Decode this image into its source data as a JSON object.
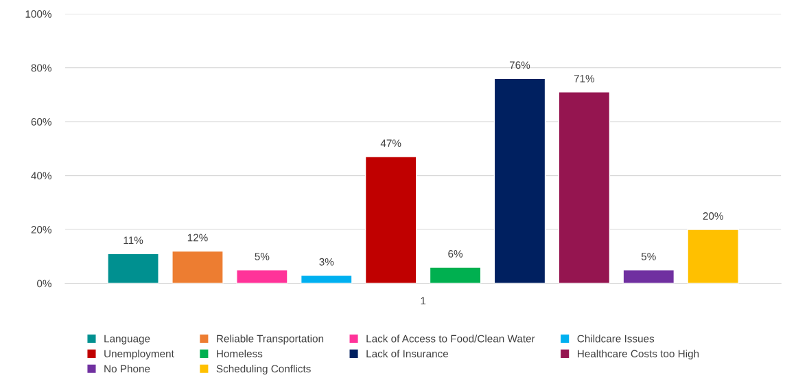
{
  "chart_data": {
    "type": "bar",
    "categories": [
      "1"
    ],
    "series": [
      {
        "name": "Language",
        "color": "#009090",
        "values": [
          11
        ],
        "value_labels": [
          "11%"
        ]
      },
      {
        "name": "Reliable Transportation",
        "color": "#ed7d31",
        "values": [
          12
        ],
        "value_labels": [
          "12%"
        ]
      },
      {
        "name": "Lack of Access to Food/Clean Water",
        "color": "#ff3399",
        "values": [
          5
        ],
        "value_labels": [
          "5%"
        ]
      },
      {
        "name": "Childcare Issues",
        "color": "#00b0f0",
        "values": [
          3
        ],
        "value_labels": [
          "3%"
        ]
      },
      {
        "name": "Unemployment",
        "color": "#c00000",
        "values": [
          47
        ],
        "value_labels": [
          "47%"
        ]
      },
      {
        "name": "Homeless",
        "color": "#00b050",
        "values": [
          6
        ],
        "value_labels": [
          "6%"
        ]
      },
      {
        "name": "Lack of Insurance",
        "color": "#002060",
        "values": [
          76
        ],
        "value_labels": [
          "76%"
        ]
      },
      {
        "name": "Healthcare Costs too High",
        "color": "#951550",
        "values": [
          71
        ],
        "value_labels": [
          "71%"
        ]
      },
      {
        "name": "No Phone",
        "color": "#7030a0",
        "values": [
          5
        ],
        "value_labels": [
          "5%"
        ]
      },
      {
        "name": "Scheduling Conflicts",
        "color": "#ffc000",
        "values": [
          20
        ],
        "value_labels": [
          "20%"
        ]
      }
    ],
    "ylim": [
      0,
      100
    ],
    "yticks": [
      {
        "value": 0,
        "label": "0%"
      },
      {
        "value": 20,
        "label": "20%"
      },
      {
        "value": 40,
        "label": "40%"
      },
      {
        "value": 60,
        "label": "60%"
      },
      {
        "value": 80,
        "label": "80%"
      },
      {
        "value": 100,
        "label": "100%"
      }
    ],
    "grid": "y",
    "legend": "bottom"
  }
}
